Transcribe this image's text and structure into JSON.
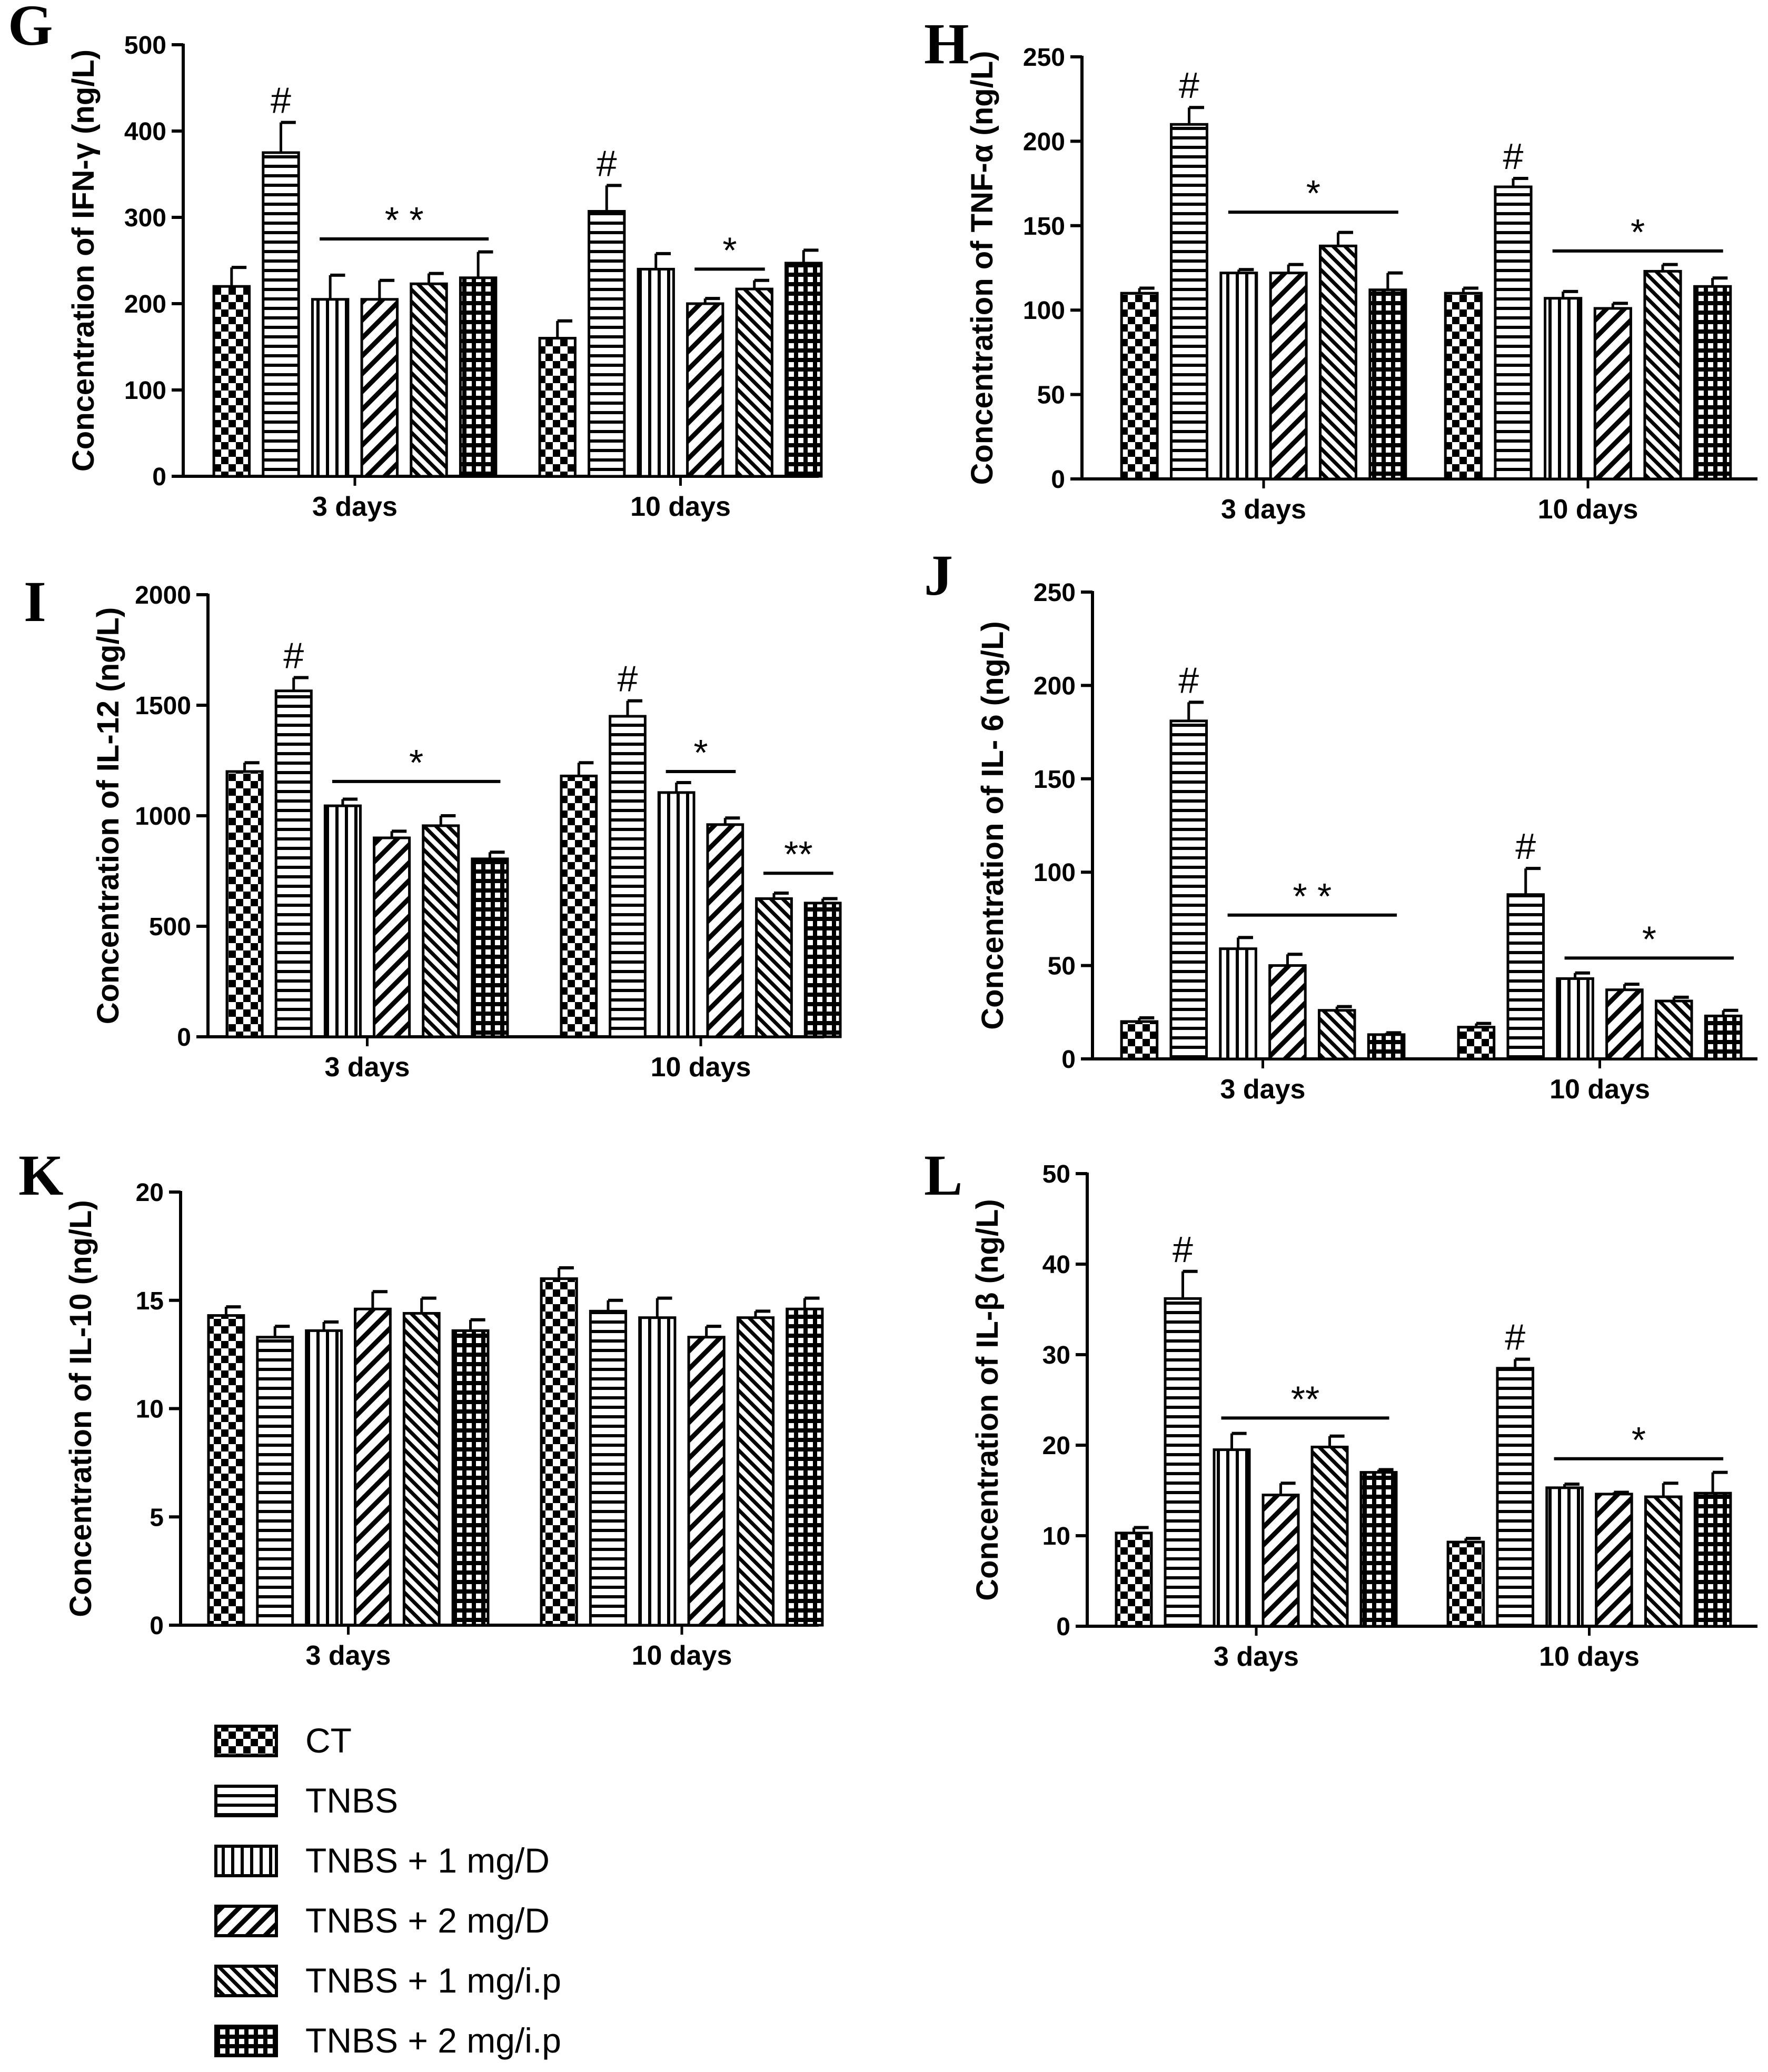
{
  "legend": [
    {
      "label": "CT",
      "pattern": "checker"
    },
    {
      "label": "TNBS",
      "pattern": "hlines"
    },
    {
      "label": "TNBS + 1 mg/D",
      "pattern": "vlines"
    },
    {
      "label": "TNBS + 2 mg/D",
      "pattern": "diag"
    },
    {
      "label": "TNBS + 1 mg/i.p",
      "pattern": "diagdense"
    },
    {
      "label": "TNBS + 2 mg/i.p",
      "pattern": "grid"
    }
  ],
  "chart_data": [
    {
      "panel": "G",
      "type": "bar",
      "ylabel": "Concentration of IFN-γ  (ng/L)",
      "ylim": [
        0,
        500
      ],
      "yticks": [
        "0",
        "100",
        "200",
        "300",
        "400",
        "500"
      ],
      "categories": [
        "3 days",
        "10 days"
      ],
      "series": [
        {
          "name": "CT",
          "values": [
            220,
            160
          ],
          "errors": [
            22,
            20
          ]
        },
        {
          "name": "TNBS",
          "values": [
            375,
            307
          ],
          "errors": [
            35,
            30
          ]
        },
        {
          "name": "TNBS + 1 mg/D",
          "values": [
            205,
            240
          ],
          "errors": [
            28,
            18
          ]
        },
        {
          "name": "TNBS + 2 mg/D",
          "values": [
            205,
            200
          ],
          "errors": [
            22,
            6
          ]
        },
        {
          "name": "TNBS + 1 mg/i.p",
          "values": [
            223,
            217
          ],
          "errors": [
            12,
            10
          ]
        },
        {
          "name": "TNBS + 2 mg/i.p",
          "values": [
            230,
            247
          ],
          "errors": [
            30,
            15
          ]
        }
      ],
      "markers": [
        {
          "text": "#",
          "group": 0,
          "bar": 1
        },
        {
          "text": "#",
          "group": 1,
          "bar": 1
        },
        {
          "text": "* *",
          "group": 0,
          "from": 2,
          "to": 5,
          "y": 275
        },
        {
          "text": "*",
          "group": 1,
          "from": 3,
          "to": 4,
          "y": 240
        }
      ]
    },
    {
      "panel": "H",
      "type": "bar",
      "ylabel": "Concentration of TNF-α  (ng/L)",
      "ylim": [
        0,
        250
      ],
      "yticks": [
        "0",
        "50",
        "100",
        "150",
        "200",
        "250"
      ],
      "categories": [
        "3 days",
        "10 days"
      ],
      "series": [
        {
          "name": "CT",
          "values": [
            110,
            110
          ],
          "errors": [
            3,
            3
          ]
        },
        {
          "name": "TNBS",
          "values": [
            210,
            173
          ],
          "errors": [
            10,
            5
          ]
        },
        {
          "name": "TNBS + 1 mg/D",
          "values": [
            122,
            107
          ],
          "errors": [
            2,
            4
          ]
        },
        {
          "name": "TNBS + 2 mg/D",
          "values": [
            122,
            101
          ],
          "errors": [
            5,
            3
          ]
        },
        {
          "name": "TNBS + 1 mg/i.p",
          "values": [
            138,
            123
          ],
          "errors": [
            8,
            4
          ]
        },
        {
          "name": "TNBS + 2 mg/i.p",
          "values": [
            112,
            114
          ],
          "errors": [
            10,
            5
          ]
        }
      ],
      "markers": [
        {
          "text": "#",
          "group": 0,
          "bar": 1
        },
        {
          "text": "#",
          "group": 1,
          "bar": 1
        },
        {
          "text": "*",
          "group": 0,
          "from": 2,
          "to": 5,
          "y": 158
        },
        {
          "text": "*",
          "group": 1,
          "from": 2,
          "to": 5,
          "y": 135
        }
      ]
    },
    {
      "panel": "I",
      "type": "bar",
      "ylabel": "Concentration of IL-12 (ng/L)",
      "ylim": [
        0,
        2000
      ],
      "yticks": [
        "0",
        "500",
        "1000",
        "1500",
        "2000"
      ],
      "categories": [
        "3 days",
        "10 days"
      ],
      "series": [
        {
          "name": "CT",
          "values": [
            1200,
            1180
          ],
          "errors": [
            40,
            60
          ]
        },
        {
          "name": "TNBS",
          "values": [
            1565,
            1450
          ],
          "errors": [
            60,
            70
          ]
        },
        {
          "name": "TNBS + 1 mg/D",
          "values": [
            1045,
            1105
          ],
          "errors": [
            30,
            45
          ]
        },
        {
          "name": "TNBS + 2 mg/D",
          "values": [
            900,
            960
          ],
          "errors": [
            30,
            30
          ]
        },
        {
          "name": "TNBS + 1 mg/i.p",
          "values": [
            955,
            625
          ],
          "errors": [
            45,
            25
          ]
        },
        {
          "name": "TNBS + 2 mg/i.p",
          "values": [
            805,
            605
          ],
          "errors": [
            30,
            20
          ]
        }
      ],
      "markers": [
        {
          "text": "#",
          "group": 0,
          "bar": 1
        },
        {
          "text": "#",
          "group": 1,
          "bar": 1
        },
        {
          "text": "*",
          "group": 0,
          "from": 2,
          "to": 5,
          "y": 1155
        },
        {
          "text": "*",
          "group": 1,
          "from": 2,
          "to": 3,
          "y": 1200
        },
        {
          "text": "**",
          "group": 1,
          "from": 4,
          "to": 5,
          "y": 740
        }
      ]
    },
    {
      "panel": "J",
      "type": "bar",
      "ylabel": "Concentration of IL- 6 (ng/L)",
      "ylim": [
        0,
        250
      ],
      "yticks": [
        "0",
        "50",
        "100",
        "150",
        "200",
        "250"
      ],
      "categories": [
        "3 days",
        "10 days"
      ],
      "series": [
        {
          "name": "CT",
          "values": [
            20,
            17
          ],
          "errors": [
            2,
            2
          ]
        },
        {
          "name": "TNBS",
          "values": [
            181,
            88
          ],
          "errors": [
            10,
            14
          ]
        },
        {
          "name": "TNBS + 1 mg/D",
          "values": [
            59,
            43
          ],
          "errors": [
            6,
            3
          ]
        },
        {
          "name": "TNBS + 2 mg/D",
          "values": [
            50,
            37
          ],
          "errors": [
            6,
            3
          ]
        },
        {
          "name": "TNBS + 1 mg/i.p",
          "values": [
            26,
            31
          ],
          "errors": [
            2,
            2
          ]
        },
        {
          "name": "TNBS + 2 mg/i.p",
          "values": [
            13,
            23
          ],
          "errors": [
            1,
            3
          ]
        }
      ],
      "markers": [
        {
          "text": "#",
          "group": 0,
          "bar": 1
        },
        {
          "text": "#",
          "group": 1,
          "bar": 1
        },
        {
          "text": "* *",
          "group": 0,
          "from": 2,
          "to": 5,
          "y": 77
        },
        {
          "text": "*",
          "group": 1,
          "from": 2,
          "to": 5,
          "y": 54
        }
      ]
    },
    {
      "panel": "K",
      "type": "bar",
      "ylabel": "Concentration of IL-10 (ng/L)",
      "ylim": [
        0,
        20
      ],
      "yticks": [
        "0",
        "5",
        "10",
        "15",
        "20"
      ],
      "categories": [
        "3 days",
        "10 days"
      ],
      "series": [
        {
          "name": "CT",
          "values": [
            14.3,
            16.0
          ],
          "errors": [
            0.4,
            0.5
          ]
        },
        {
          "name": "TNBS",
          "values": [
            13.3,
            14.5
          ],
          "errors": [
            0.5,
            0.5
          ]
        },
        {
          "name": "TNBS + 1 mg/D",
          "values": [
            13.6,
            14.2
          ],
          "errors": [
            0.4,
            0.9
          ]
        },
        {
          "name": "TNBS + 2 mg/D",
          "values": [
            14.6,
            13.3
          ],
          "errors": [
            0.8,
            0.5
          ]
        },
        {
          "name": "TNBS + 1 mg/i.p",
          "values": [
            14.4,
            14.2
          ],
          "errors": [
            0.7,
            0.3
          ]
        },
        {
          "name": "TNBS + 2 mg/i.p",
          "values": [
            13.6,
            14.6
          ],
          "errors": [
            0.5,
            0.5
          ]
        }
      ],
      "markers": []
    },
    {
      "panel": "L",
      "type": "bar",
      "ylabel": "Concentration of IL-β  (ng/L)",
      "ylim": [
        0,
        50
      ],
      "yticks": [
        "0",
        "10",
        "20",
        "30",
        "40",
        "50"
      ],
      "categories": [
        "3 days",
        "10 days"
      ],
      "series": [
        {
          "name": "CT",
          "values": [
            10.3,
            9.3
          ],
          "errors": [
            0.6,
            0.4
          ]
        },
        {
          "name": "TNBS",
          "values": [
            36.2,
            28.5
          ],
          "errors": [
            3.0,
            1.0
          ]
        },
        {
          "name": "TNBS + 1 mg/D",
          "values": [
            19.5,
            15.3
          ],
          "errors": [
            1.8,
            0.4
          ]
        },
        {
          "name": "TNBS + 2 mg/D",
          "values": [
            14.5,
            14.6
          ],
          "errors": [
            1.3,
            0.2
          ]
        },
        {
          "name": "TNBS + 1 mg/i.p",
          "values": [
            19.8,
            14.3
          ],
          "errors": [
            1.2,
            1.5
          ]
        },
        {
          "name": "TNBS + 2 mg/i.p",
          "values": [
            17.0,
            14.7
          ],
          "errors": [
            0.3,
            2.3
          ]
        }
      ],
      "markers": [
        {
          "text": "#",
          "group": 0,
          "bar": 1
        },
        {
          "text": "#",
          "group": 1,
          "bar": 1
        },
        {
          "text": "**",
          "group": 0,
          "from": 2,
          "to": 5,
          "y": 23
        },
        {
          "text": "*",
          "group": 1,
          "from": 2,
          "to": 5,
          "y": 18.5
        }
      ]
    }
  ]
}
